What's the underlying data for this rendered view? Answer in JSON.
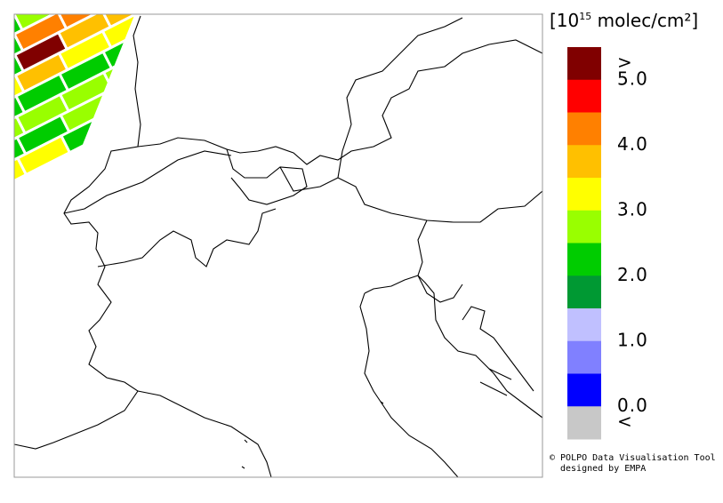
{
  "colorbar": {
    "title_prefix": "[10",
    "title_exponent": "15",
    "title_suffix": " molec/cm²]",
    "colors": [
      "#800000",
      "#ff0000",
      "#ff8000",
      "#ffc000",
      "#ffff00",
      "#99ff00",
      "#00cc00",
      "#009933",
      "#c0c0ff",
      "#8080ff",
      "#0000ff",
      "#c8c8c8"
    ],
    "labels": [
      ">",
      "5.0",
      "4.0",
      "3.0",
      "2.0",
      "1.0",
      "0.0",
      "<"
    ]
  },
  "credits": [
    "© POLPO Data Visualisation Tool",
    "designed by EMPA"
  ]
}
